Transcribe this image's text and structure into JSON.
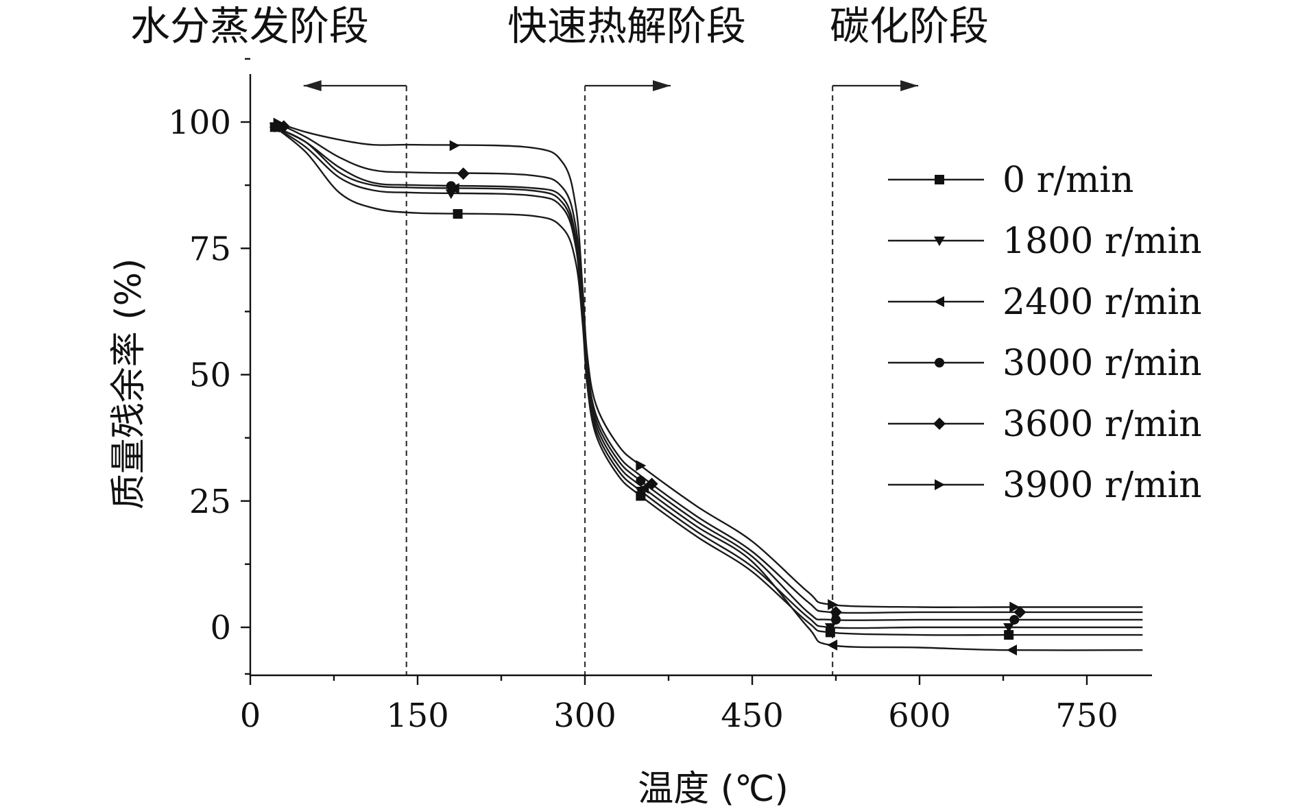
{
  "chart_data": {
    "type": "line",
    "xlabel": "温度 (℃)",
    "ylabel": "质量残余率 (%)",
    "xlim": [
      0,
      800
    ],
    "ylim": [
      -10,
      110
    ],
    "xticks": [
      0,
      150,
      300,
      450,
      600,
      750
    ],
    "yticks": [
      0,
      25,
      50,
      75,
      100
    ],
    "grid": false,
    "legend_position": "right",
    "annotations": {
      "stages": [
        {
          "label": "水分蒸发阶段",
          "boundary_x": 140,
          "arrow": "left"
        },
        {
          "label": "快速热解阶段",
          "boundary_x": 300,
          "arrow": "right"
        },
        {
          "label": "碳化阶段",
          "boundary_x": 522,
          "arrow": "right"
        }
      ]
    },
    "series": [
      {
        "name": "0 r/min",
        "marker": "square",
        "x": [
          22,
          50,
          80,
          110,
          150,
          250,
          280,
          292,
          298,
          302,
          310,
          330,
          350,
          400,
          450,
          500,
          520,
          600,
          680,
          800
        ],
        "y": [
          99,
          94,
          86,
          83,
          82,
          81.5,
          79,
          72,
          60,
          48,
          38,
          30,
          26,
          18,
          11,
          1,
          -1,
          -1.5,
          -1.5,
          -1.5
        ],
        "marker_x": [
          22,
          186,
          350,
          520,
          680
        ]
      },
      {
        "name": "1800 r/min",
        "marker": "triangle-down",
        "x": [
          22,
          50,
          80,
          110,
          150,
          250,
          280,
          292,
          298,
          302,
          310,
          330,
          350,
          400,
          450,
          500,
          520,
          600,
          680,
          800
        ],
        "y": [
          99,
          95,
          89,
          86.5,
          86,
          85.5,
          83,
          75,
          61,
          49,
          39,
          31,
          27,
          19,
          12,
          2,
          0,
          0,
          0,
          0
        ],
        "marker_x": [
          22,
          180,
          350,
          520,
          680
        ]
      },
      {
        "name": "2400 r/min",
        "marker": "triangle-left",
        "x": [
          22,
          50,
          80,
          110,
          150,
          250,
          280,
          292,
          298,
          302,
          310,
          330,
          350,
          400,
          450,
          500,
          520,
          600,
          680,
          800
        ],
        "y": [
          99,
          96,
          90,
          87.5,
          87,
          86.5,
          84,
          76,
          62,
          50,
          40,
          32,
          28,
          20,
          13,
          0,
          -3.5,
          -4,
          -4.5,
          -4.5
        ],
        "marker_x": [
          22,
          183,
          353,
          522,
          683
        ]
      },
      {
        "name": "3000 r/min",
        "marker": "circle",
        "x": [
          22,
          50,
          80,
          110,
          150,
          250,
          280,
          292,
          298,
          302,
          310,
          330,
          350,
          400,
          450,
          500,
          520,
          600,
          680,
          800
        ],
        "y": [
          99,
          96,
          91,
          88,
          87.5,
          87,
          85,
          77,
          63,
          51,
          41,
          33,
          29,
          21,
          14,
          3,
          1.5,
          1.5,
          1.5,
          1.5
        ],
        "marker_x": [
          22,
          180,
          350,
          525,
          685
        ]
      },
      {
        "name": "3600 r/min",
        "marker": "diamond",
        "x": [
          22,
          50,
          80,
          110,
          150,
          250,
          280,
          292,
          298,
          302,
          310,
          330,
          350,
          400,
          450,
          500,
          520,
          600,
          680,
          800
        ],
        "y": [
          100,
          97,
          93,
          90.5,
          90,
          89.5,
          87,
          79,
          64,
          52,
          42,
          34,
          30,
          22,
          15,
          5,
          3,
          3,
          3,
          3
        ],
        "marker_x": [
          30,
          191,
          360,
          525,
          690
        ]
      },
      {
        "name": "3900 r/min",
        "marker": "triangle-right",
        "x": [
          22,
          50,
          80,
          110,
          150,
          250,
          280,
          292,
          298,
          302,
          310,
          330,
          350,
          400,
          450,
          500,
          520,
          600,
          680,
          800
        ],
        "y": [
          100,
          98,
          96.5,
          95.5,
          95.5,
          95,
          92,
          83,
          67,
          54,
          44,
          36,
          32,
          24,
          17,
          7,
          4.5,
          4,
          4,
          4
        ],
        "marker_x": [
          25,
          183,
          350,
          522,
          685
        ]
      }
    ]
  }
}
